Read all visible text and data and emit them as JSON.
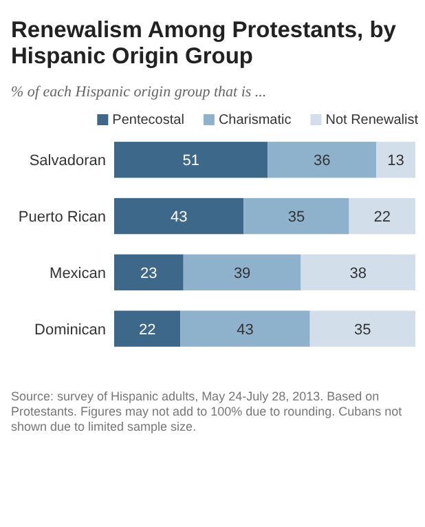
{
  "chart_data": {
    "type": "bar",
    "orientation": "horizontal",
    "stacked": true,
    "data_labels": true,
    "legend": "top",
    "tick_labels": "y",
    "title": "Renewalism Among Protestants, by Hispanic Origin Group",
    "subtitle": "% of each Hispanic origin group that is ...",
    "categories": [
      "Salvadoran",
      "Puerto Rican",
      "Mexican",
      "Dominican"
    ],
    "series": [
      {
        "name": "Pentecostal",
        "color": "#3d6889",
        "values": [
          51,
          43,
          23,
          22
        ]
      },
      {
        "name": "Charismatic",
        "color": "#8fb2cc",
        "values": [
          36,
          35,
          39,
          43
        ]
      },
      {
        "name": "Not Renewalist",
        "color": "#d2dfea",
        "values": [
          13,
          22,
          38,
          35
        ]
      }
    ],
    "annotations": [
      "Source: survey of Hispanic adults, May 24-July 28, 2013. Based on Protestants. Figures may not add to 100% due to rounding. Cubans not shown due to limited sample size."
    ]
  }
}
